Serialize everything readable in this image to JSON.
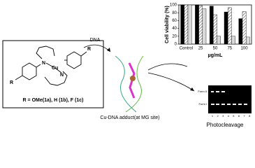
{
  "chart_data": {
    "type": "bar",
    "y_label": "Cell viability (%)",
    "x_label": "µg/mL",
    "categories": [
      "Control",
      "25",
      "50",
      "75",
      "100"
    ],
    "series": [
      {
        "color": "#000000",
        "values": [
          100,
          100,
          97,
          82,
          65
        ]
      },
      {
        "color": "#666666",
        "pattern": "diagonal",
        "values": [
          100,
          98,
          75,
          93,
          83
        ]
      },
      {
        "color": "#d9d9d9",
        "values": [
          100,
          90,
          20,
          20,
          18
        ]
      }
    ],
    "ylim": [
      0,
      100
    ],
    "yticks": [
      0,
      20,
      40,
      60,
      80,
      100
    ]
  },
  "structure": {
    "atoms": [
      "N",
      "Cu",
      "N",
      "R",
      "R"
    ],
    "caption": "R = OMe(1a), H (1b), F (1c)"
  },
  "arrow_label": "DNA",
  "adduct_label": "Cu-DNA adduct(at MG site)",
  "gel": {
    "bands": [
      "Form II",
      "Form I"
    ],
    "lanes": [
      "1",
      "2",
      "3",
      "4",
      "5",
      "6",
      "7",
      "8"
    ],
    "caption": "Photocleavage"
  }
}
